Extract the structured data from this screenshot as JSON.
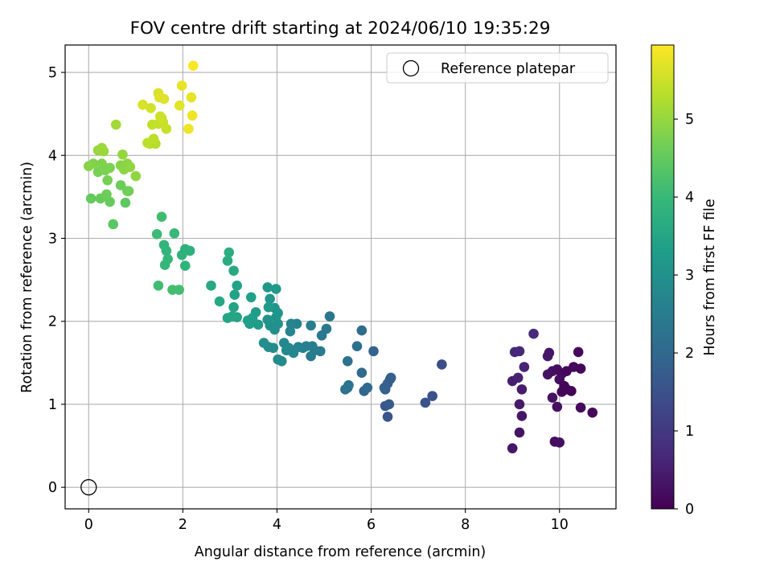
{
  "chart_data": {
    "type": "scatter",
    "title": "FOV centre drift starting at 2024/06/10 19:35:29",
    "xlabel": "Angular distance from reference (arcmin)",
    "ylabel": "Rotation from reference (arcmin)",
    "xlim": [
      -0.5,
      11.2
    ],
    "ylim": [
      -0.26,
      5.33
    ],
    "xticks": [
      0,
      2,
      4,
      6,
      8,
      10
    ],
    "yticks": [
      0,
      1,
      2,
      3,
      4,
      5
    ],
    "grid": true,
    "legend": {
      "position": "top-right",
      "entries": [
        "Reference platepar"
      ]
    },
    "colorbar": {
      "label": "Hours from first FF file",
      "colormap": "viridis",
      "range": [
        0,
        5.95
      ],
      "ticks": [
        0,
        1,
        2,
        3,
        4,
        5
      ]
    },
    "reference_point": {
      "x": 0,
      "y": 0
    },
    "colormap_stops": [
      "#440154",
      "#482878",
      "#3e4989",
      "#31688e",
      "#26828e",
      "#1f9e89",
      "#35b779",
      "#6ece58",
      "#b5de2b",
      "#fde725"
    ],
    "points": [
      {
        "x": 9.0,
        "y": 0.47,
        "h": 0.35
      },
      {
        "x": 9.15,
        "y": 0.66,
        "h": 0.3
      },
      {
        "x": 9.9,
        "y": 0.55,
        "h": 0.2
      },
      {
        "x": 10.0,
        "y": 0.54,
        "h": 0.25
      },
      {
        "x": 10.7,
        "y": 0.9,
        "h": 0.1
      },
      {
        "x": 10.45,
        "y": 0.96,
        "h": 0.15
      },
      {
        "x": 9.95,
        "y": 0.97,
        "h": 0.25
      },
      {
        "x": 9.2,
        "y": 0.86,
        "h": 0.35
      },
      {
        "x": 9.15,
        "y": 1.0,
        "h": 0.4
      },
      {
        "x": 9.85,
        "y": 1.08,
        "h": 0.3
      },
      {
        "x": 9.2,
        "y": 1.18,
        "h": 0.45
      },
      {
        "x": 9.0,
        "y": 1.28,
        "h": 0.5
      },
      {
        "x": 9.12,
        "y": 1.32,
        "h": 0.55
      },
      {
        "x": 9.25,
        "y": 1.45,
        "h": 0.6
      },
      {
        "x": 9.05,
        "y": 1.63,
        "h": 0.65
      },
      {
        "x": 9.15,
        "y": 1.64,
        "h": 0.7
      },
      {
        "x": 9.45,
        "y": 1.85,
        "h": 0.75
      },
      {
        "x": 9.75,
        "y": 1.58,
        "h": 0.4
      },
      {
        "x": 9.78,
        "y": 1.62,
        "h": 0.35
      },
      {
        "x": 9.75,
        "y": 1.36,
        "h": 0.3
      },
      {
        "x": 9.85,
        "y": 1.4,
        "h": 0.25
      },
      {
        "x": 9.95,
        "y": 1.42,
        "h": 0.2
      },
      {
        "x": 10.05,
        "y": 1.37,
        "h": 0.15
      },
      {
        "x": 10.0,
        "y": 1.3,
        "h": 0.2
      },
      {
        "x": 10.15,
        "y": 1.4,
        "h": 0.1
      },
      {
        "x": 10.3,
        "y": 1.45,
        "h": 0.12
      },
      {
        "x": 10.45,
        "y": 1.43,
        "h": 0.1
      },
      {
        "x": 10.4,
        "y": 1.63,
        "h": 0.15
      },
      {
        "x": 10.1,
        "y": 1.22,
        "h": 0.08
      },
      {
        "x": 10.05,
        "y": 1.15,
        "h": 0.1
      },
      {
        "x": 10.25,
        "y": 1.16,
        "h": 0.05
      },
      {
        "x": 10.15,
        "y": 1.18,
        "h": 0.08
      },
      {
        "x": 7.5,
        "y": 1.48,
        "h": 1.4
      },
      {
        "x": 7.3,
        "y": 1.1,
        "h": 1.5
      },
      {
        "x": 7.15,
        "y": 1.02,
        "h": 1.55
      },
      {
        "x": 6.35,
        "y": 0.85,
        "h": 1.6
      },
      {
        "x": 6.3,
        "y": 0.98,
        "h": 1.65
      },
      {
        "x": 6.38,
        "y": 1.0,
        "h": 1.7
      },
      {
        "x": 6.3,
        "y": 1.18,
        "h": 1.75
      },
      {
        "x": 6.4,
        "y": 1.3,
        "h": 1.75
      },
      {
        "x": 6.42,
        "y": 1.32,
        "h": 1.8
      },
      {
        "x": 6.35,
        "y": 1.25,
        "h": 1.8
      },
      {
        "x": 6.28,
        "y": 1.2,
        "h": 1.85
      },
      {
        "x": 6.05,
        "y": 1.64,
        "h": 1.9
      },
      {
        "x": 5.85,
        "y": 1.16,
        "h": 1.95
      },
      {
        "x": 5.92,
        "y": 1.2,
        "h": 2.0
      },
      {
        "x": 5.8,
        "y": 1.38,
        "h": 2.05
      },
      {
        "x": 5.8,
        "y": 1.89,
        "h": 2.1
      },
      {
        "x": 5.7,
        "y": 1.7,
        "h": 2.15
      },
      {
        "x": 5.5,
        "y": 1.52,
        "h": 2.2
      },
      {
        "x": 5.5,
        "y": 1.2,
        "h": 2.25
      },
      {
        "x": 5.45,
        "y": 1.18,
        "h": 2.25
      },
      {
        "x": 5.52,
        "y": 1.23,
        "h": 2.3
      },
      {
        "x": 5.12,
        "y": 2.06,
        "h": 2.35
      },
      {
        "x": 5.05,
        "y": 1.91,
        "h": 2.4
      },
      {
        "x": 4.95,
        "y": 1.83,
        "h": 2.4
      },
      {
        "x": 4.92,
        "y": 1.64,
        "h": 2.45
      },
      {
        "x": 4.8,
        "y": 1.65,
        "h": 2.5
      },
      {
        "x": 4.72,
        "y": 1.58,
        "h": 2.5
      },
      {
        "x": 4.75,
        "y": 1.7,
        "h": 2.55
      },
      {
        "x": 4.72,
        "y": 1.95,
        "h": 2.55
      },
      {
        "x": 4.62,
        "y": 1.7,
        "h": 2.6
      },
      {
        "x": 4.55,
        "y": 1.68,
        "h": 2.6
      },
      {
        "x": 4.45,
        "y": 1.69,
        "h": 2.65
      },
      {
        "x": 4.42,
        "y": 1.97,
        "h": 2.65
      },
      {
        "x": 4.3,
        "y": 1.97,
        "h": 2.7
      },
      {
        "x": 4.28,
        "y": 1.88,
        "h": 2.7
      },
      {
        "x": 4.35,
        "y": 1.62,
        "h": 2.75
      },
      {
        "x": 4.25,
        "y": 1.68,
        "h": 2.75
      },
      {
        "x": 4.15,
        "y": 1.74,
        "h": 2.8
      },
      {
        "x": 4.2,
        "y": 1.65,
        "h": 2.8
      },
      {
        "x": 4.1,
        "y": 1.52,
        "h": 2.85
      },
      {
        "x": 4.02,
        "y": 1.54,
        "h": 2.85
      },
      {
        "x": 3.92,
        "y": 1.68,
        "h": 2.9
      },
      {
        "x": 3.82,
        "y": 1.69,
        "h": 2.9
      },
      {
        "x": 3.72,
        "y": 1.74,
        "h": 2.95
      },
      {
        "x": 3.95,
        "y": 1.9,
        "h": 2.95
      },
      {
        "x": 4.02,
        "y": 1.97,
        "h": 3.0
      },
      {
        "x": 3.85,
        "y": 1.95,
        "h": 3.0
      },
      {
        "x": 3.98,
        "y": 2.05,
        "h": 3.05
      },
      {
        "x": 3.8,
        "y": 2.02,
        "h": 3.05
      },
      {
        "x": 4.02,
        "y": 2.1,
        "h": 3.1
      },
      {
        "x": 3.95,
        "y": 2.16,
        "h": 3.1
      },
      {
        "x": 3.85,
        "y": 2.27,
        "h": 3.15
      },
      {
        "x": 3.8,
        "y": 2.41,
        "h": 3.15
      },
      {
        "x": 3.98,
        "y": 2.39,
        "h": 3.2
      },
      {
        "x": 3.82,
        "y": 2.17,
        "h": 3.2
      },
      {
        "x": 3.6,
        "y": 1.96,
        "h": 3.25
      },
      {
        "x": 3.55,
        "y": 2.11,
        "h": 3.25
      },
      {
        "x": 3.48,
        "y": 2.04,
        "h": 3.3
      },
      {
        "x": 3.42,
        "y": 1.97,
        "h": 3.3
      },
      {
        "x": 3.38,
        "y": 2.01,
        "h": 3.35
      },
      {
        "x": 3.45,
        "y": 2.29,
        "h": 3.35
      },
      {
        "x": 3.15,
        "y": 2.43,
        "h": 3.4
      },
      {
        "x": 3.1,
        "y": 2.32,
        "h": 3.4
      },
      {
        "x": 3.08,
        "y": 2.17,
        "h": 3.45
      },
      {
        "x": 3.15,
        "y": 2.05,
        "h": 3.45
      },
      {
        "x": 3.05,
        "y": 2.06,
        "h": 3.5
      },
      {
        "x": 2.95,
        "y": 2.04,
        "h": 3.5
      },
      {
        "x": 2.78,
        "y": 2.24,
        "h": 3.55
      },
      {
        "x": 2.6,
        "y": 2.43,
        "h": 3.6
      },
      {
        "x": 3.08,
        "y": 2.61,
        "h": 3.6
      },
      {
        "x": 2.95,
        "y": 2.73,
        "h": 3.65
      },
      {
        "x": 2.98,
        "y": 2.83,
        "h": 3.7
      },
      {
        "x": 2.05,
        "y": 2.87,
        "h": 3.75
      },
      {
        "x": 2.15,
        "y": 2.85,
        "h": 3.8
      },
      {
        "x": 1.98,
        "y": 2.8,
        "h": 3.8
      },
      {
        "x": 2.05,
        "y": 2.67,
        "h": 3.85
      },
      {
        "x": 1.6,
        "y": 2.92,
        "h": 3.9
      },
      {
        "x": 1.65,
        "y": 2.85,
        "h": 3.9
      },
      {
        "x": 1.68,
        "y": 2.75,
        "h": 3.95
      },
      {
        "x": 1.62,
        "y": 2.68,
        "h": 3.95
      },
      {
        "x": 1.82,
        "y": 3.06,
        "h": 4.0
      },
      {
        "x": 1.45,
        "y": 3.05,
        "h": 4.05
      },
      {
        "x": 1.55,
        "y": 3.26,
        "h": 4.1
      },
      {
        "x": 1.48,
        "y": 2.43,
        "h": 4.1
      },
      {
        "x": 1.78,
        "y": 2.38,
        "h": 4.15
      },
      {
        "x": 1.92,
        "y": 2.38,
        "h": 4.15
      },
      {
        "x": 0.52,
        "y": 3.17,
        "h": 4.4
      },
      {
        "x": 0.78,
        "y": 3.43,
        "h": 4.45
      },
      {
        "x": 0.05,
        "y": 3.48,
        "h": 4.5
      },
      {
        "x": 0.25,
        "y": 3.48,
        "h": 4.55
      },
      {
        "x": 0.45,
        "y": 3.44,
        "h": 4.55
      },
      {
        "x": 0.38,
        "y": 3.53,
        "h": 4.6
      },
      {
        "x": 0.68,
        "y": 3.64,
        "h": 4.6
      },
      {
        "x": 0.82,
        "y": 3.57,
        "h": 4.65
      },
      {
        "x": 0.85,
        "y": 3.57,
        "h": 4.65
      },
      {
        "x": 0.4,
        "y": 3.7,
        "h": 4.7
      },
      {
        "x": 0.2,
        "y": 3.8,
        "h": 4.7
      },
      {
        "x": 0.35,
        "y": 3.82,
        "h": 4.75
      },
      {
        "x": 0.45,
        "y": 3.85,
        "h": 4.75
      },
      {
        "x": 0.28,
        "y": 3.9,
        "h": 4.8
      },
      {
        "x": 0.1,
        "y": 3.9,
        "h": 4.8
      },
      {
        "x": 0.0,
        "y": 3.87,
        "h": 4.85
      },
      {
        "x": 0.68,
        "y": 3.88,
        "h": 4.85
      },
      {
        "x": 0.75,
        "y": 3.83,
        "h": 4.9
      },
      {
        "x": 0.82,
        "y": 3.9,
        "h": 4.9
      },
      {
        "x": 0.88,
        "y": 3.86,
        "h": 4.95
      },
      {
        "x": 1.0,
        "y": 3.75,
        "h": 4.95
      },
      {
        "x": 0.72,
        "y": 4.01,
        "h": 5.0
      },
      {
        "x": 0.2,
        "y": 4.06,
        "h": 5.0
      },
      {
        "x": 0.32,
        "y": 4.05,
        "h": 5.05
      },
      {
        "x": 0.28,
        "y": 4.09,
        "h": 5.05
      },
      {
        "x": 0.58,
        "y": 4.37,
        "h": 5.1
      },
      {
        "x": 1.3,
        "y": 4.14,
        "h": 5.3
      },
      {
        "x": 1.42,
        "y": 4.14,
        "h": 5.3
      },
      {
        "x": 1.25,
        "y": 4.15,
        "h": 5.35
      },
      {
        "x": 1.38,
        "y": 4.2,
        "h": 5.35
      },
      {
        "x": 1.35,
        "y": 4.37,
        "h": 5.4
      },
      {
        "x": 1.48,
        "y": 4.38,
        "h": 5.4
      },
      {
        "x": 1.58,
        "y": 4.4,
        "h": 5.45
      },
      {
        "x": 1.65,
        "y": 4.32,
        "h": 5.45
      },
      {
        "x": 1.52,
        "y": 4.47,
        "h": 5.5
      },
      {
        "x": 1.55,
        "y": 4.45,
        "h": 5.5
      },
      {
        "x": 1.32,
        "y": 4.57,
        "h": 5.55
      },
      {
        "x": 1.15,
        "y": 4.61,
        "h": 5.6
      },
      {
        "x": 1.48,
        "y": 4.75,
        "h": 5.6
      },
      {
        "x": 1.5,
        "y": 4.7,
        "h": 5.65
      },
      {
        "x": 1.6,
        "y": 4.68,
        "h": 5.65
      },
      {
        "x": 1.93,
        "y": 4.6,
        "h": 5.7
      },
      {
        "x": 1.98,
        "y": 4.84,
        "h": 5.75
      },
      {
        "x": 2.18,
        "y": 4.7,
        "h": 5.75
      },
      {
        "x": 2.2,
        "y": 4.48,
        "h": 5.8
      },
      {
        "x": 2.12,
        "y": 4.32,
        "h": 5.8
      },
      {
        "x": 2.22,
        "y": 5.08,
        "h": 5.9
      }
    ]
  }
}
